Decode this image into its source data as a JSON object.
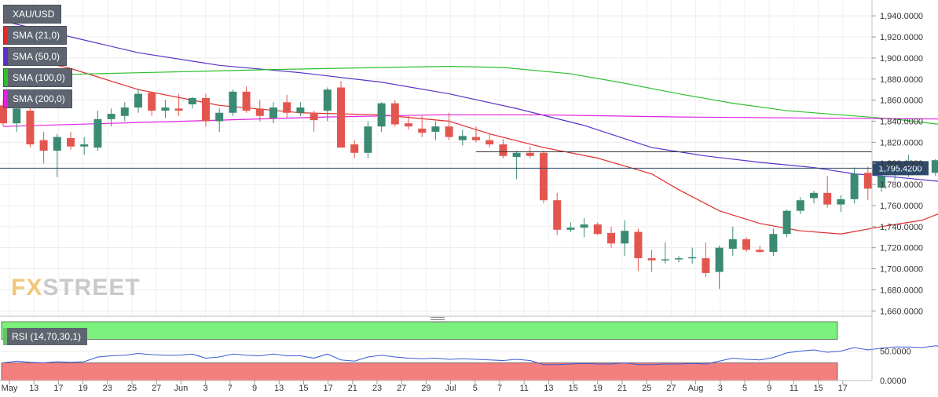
{
  "symbol": "XAU/USD",
  "watermark": {
    "prefix": "FX",
    "name": "STREET"
  },
  "indicators": [
    {
      "label": "SMA (21,0)",
      "color": "#e02b2b"
    },
    {
      "label": "SMA (50,0)",
      "color": "#5a32c8"
    },
    {
      "label": "SMA (100,0)",
      "color": "#2ec02e"
    },
    {
      "label": "SMA (200,0)",
      "color": "#e020e0"
    }
  ],
  "rsi_label": "RSI (14,70,30,1)",
  "colors": {
    "up": "#3b8a74",
    "down": "#e3564f",
    "price_tag": "#2f4a6a"
  },
  "chart_data": [
    {
      "type": "candlestick",
      "x_ticks": [
        "May",
        "13",
        "17",
        "19",
        "23",
        "25",
        "27",
        "Jun",
        "3",
        "7",
        "9",
        "13",
        "15",
        "17",
        "21",
        "23",
        "27",
        "29",
        "Jul",
        "5",
        "7",
        "11",
        "13",
        "15",
        "19",
        "21",
        "25",
        "27",
        "Aug",
        "3",
        "5",
        "9",
        "11",
        "15",
        "17"
      ],
      "y_ticks": [
        "1,660.0000",
        "1,680.0000",
        "1,700.0000",
        "1,720.0000",
        "1,740.0000",
        "1,760.0000",
        "1,780.0000",
        "1,800.0000",
        "1,820.0000",
        "1,840.0000",
        "1,860.0000",
        "1,880.0000",
        "1,900.0000",
        "1,920.0000",
        "1,940.0000"
      ],
      "ylim": [
        1655,
        1955
      ],
      "last_price": "1,795.4200",
      "resistance_level": 1811,
      "candles": [
        {
          "o": 1855,
          "h": 1860,
          "l": 1835,
          "c": 1838
        },
        {
          "o": 1838,
          "h": 1858,
          "l": 1830,
          "c": 1852
        },
        {
          "o": 1850,
          "h": 1855,
          "l": 1815,
          "c": 1818
        },
        {
          "o": 1822,
          "h": 1830,
          "l": 1800,
          "c": 1812
        },
        {
          "o": 1812,
          "h": 1828,
          "l": 1787,
          "c": 1825
        },
        {
          "o": 1824,
          "h": 1830,
          "l": 1813,
          "c": 1816
        },
        {
          "o": 1816,
          "h": 1825,
          "l": 1808,
          "c": 1818
        },
        {
          "o": 1815,
          "h": 1850,
          "l": 1812,
          "c": 1842
        },
        {
          "o": 1842,
          "h": 1852,
          "l": 1835,
          "c": 1847
        },
        {
          "o": 1845,
          "h": 1858,
          "l": 1840,
          "c": 1853
        },
        {
          "o": 1853,
          "h": 1870,
          "l": 1848,
          "c": 1866
        },
        {
          "o": 1867,
          "h": 1868,
          "l": 1845,
          "c": 1850
        },
        {
          "o": 1850,
          "h": 1860,
          "l": 1843,
          "c": 1853
        },
        {
          "o": 1852,
          "h": 1866,
          "l": 1845,
          "c": 1850
        },
        {
          "o": 1856,
          "h": 1863,
          "l": 1852,
          "c": 1862
        },
        {
          "o": 1862,
          "h": 1866,
          "l": 1835,
          "c": 1840
        },
        {
          "o": 1840,
          "h": 1852,
          "l": 1830,
          "c": 1848
        },
        {
          "o": 1848,
          "h": 1870,
          "l": 1845,
          "c": 1868
        },
        {
          "o": 1868,
          "h": 1873,
          "l": 1848,
          "c": 1850
        },
        {
          "o": 1852,
          "h": 1860,
          "l": 1840,
          "c": 1845
        },
        {
          "o": 1843,
          "h": 1858,
          "l": 1838,
          "c": 1853
        },
        {
          "o": 1858,
          "h": 1865,
          "l": 1843,
          "c": 1848
        },
        {
          "o": 1848,
          "h": 1858,
          "l": 1845,
          "c": 1853
        },
        {
          "o": 1847,
          "h": 1850,
          "l": 1830,
          "c": 1841
        },
        {
          "o": 1850,
          "h": 1872,
          "l": 1840,
          "c": 1870
        },
        {
          "o": 1872,
          "h": 1878,
          "l": 1815,
          "c": 1815
        },
        {
          "o": 1818,
          "h": 1822,
          "l": 1805,
          "c": 1810
        },
        {
          "o": 1810,
          "h": 1840,
          "l": 1805,
          "c": 1835
        },
        {
          "o": 1835,
          "h": 1858,
          "l": 1830,
          "c": 1857
        },
        {
          "o": 1857,
          "h": 1860,
          "l": 1835,
          "c": 1837
        },
        {
          "o": 1838,
          "h": 1845,
          "l": 1832,
          "c": 1835
        },
        {
          "o": 1833,
          "h": 1845,
          "l": 1825,
          "c": 1829
        },
        {
          "o": 1830,
          "h": 1840,
          "l": 1822,
          "c": 1835
        },
        {
          "o": 1835,
          "h": 1848,
          "l": 1822,
          "c": 1825
        },
        {
          "o": 1822,
          "h": 1832,
          "l": 1817,
          "c": 1826
        },
        {
          "o": 1825,
          "h": 1835,
          "l": 1820,
          "c": 1822
        },
        {
          "o": 1822,
          "h": 1828,
          "l": 1815,
          "c": 1818
        },
        {
          "o": 1818,
          "h": 1823,
          "l": 1805,
          "c": 1807
        },
        {
          "o": 1806,
          "h": 1812,
          "l": 1785,
          "c": 1810
        },
        {
          "o": 1810,
          "h": 1816,
          "l": 1805,
          "c": 1807
        },
        {
          "o": 1810,
          "h": 1812,
          "l": 1762,
          "c": 1765
        },
        {
          "o": 1765,
          "h": 1772,
          "l": 1732,
          "c": 1737
        },
        {
          "o": 1737,
          "h": 1744,
          "l": 1735,
          "c": 1739
        },
        {
          "o": 1739,
          "h": 1748,
          "l": 1730,
          "c": 1742
        },
        {
          "o": 1742,
          "h": 1744,
          "l": 1732,
          "c": 1733
        },
        {
          "o": 1734,
          "h": 1740,
          "l": 1720,
          "c": 1724
        },
        {
          "o": 1724,
          "h": 1746,
          "l": 1712,
          "c": 1736
        },
        {
          "o": 1735,
          "h": 1738,
          "l": 1698,
          "c": 1710
        },
        {
          "o": 1710,
          "h": 1718,
          "l": 1697,
          "c": 1708
        },
        {
          "o": 1708,
          "h": 1725,
          "l": 1705,
          "c": 1709
        },
        {
          "o": 1709,
          "h": 1712,
          "l": 1706,
          "c": 1710
        },
        {
          "o": 1710,
          "h": 1720,
          "l": 1705,
          "c": 1711
        },
        {
          "o": 1710,
          "h": 1725,
          "l": 1692,
          "c": 1696
        },
        {
          "o": 1697,
          "h": 1722,
          "l": 1681,
          "c": 1720
        },
        {
          "o": 1719,
          "h": 1740,
          "l": 1712,
          "c": 1728
        },
        {
          "o": 1728,
          "h": 1730,
          "l": 1716,
          "c": 1718
        },
        {
          "o": 1718,
          "h": 1722,
          "l": 1715,
          "c": 1716
        },
        {
          "o": 1716,
          "h": 1738,
          "l": 1712,
          "c": 1733
        },
        {
          "o": 1733,
          "h": 1756,
          "l": 1730,
          "c": 1755
        },
        {
          "o": 1755,
          "h": 1768,
          "l": 1752,
          "c": 1765
        },
        {
          "o": 1767,
          "h": 1774,
          "l": 1762,
          "c": 1772
        },
        {
          "o": 1772,
          "h": 1788,
          "l": 1758,
          "c": 1761
        },
        {
          "o": 1761,
          "h": 1770,
          "l": 1754,
          "c": 1766
        },
        {
          "o": 1766,
          "h": 1796,
          "l": 1762,
          "c": 1790
        },
        {
          "o": 1791,
          "h": 1797,
          "l": 1765,
          "c": 1776
        },
        {
          "o": 1777,
          "h": 1790,
          "l": 1773,
          "c": 1788
        },
        {
          "o": 1789,
          "h": 1798,
          "l": 1784,
          "c": 1794
        },
        {
          "o": 1793,
          "h": 1808,
          "l": 1787,
          "c": 1795
        },
        {
          "o": 1795,
          "h": 1800,
          "l": 1790,
          "c": 1792
        },
        {
          "o": 1791,
          "h": 1804,
          "l": 1788,
          "c": 1803
        },
        {
          "o": 1802,
          "h": 1803,
          "l": 1792,
          "c": 1795
        }
      ],
      "sma": [
        {
          "label": "SMA (21,0)",
          "color": "#e02b2b",
          "points": [
            [
              0,
              1905
            ],
            [
              5,
              1890
            ],
            [
              10,
              1870
            ],
            [
              16,
              1855
            ],
            [
              22,
              1848
            ],
            [
              28,
              1846
            ],
            [
              33,
              1840
            ],
            [
              36,
              1828
            ],
            [
              40,
              1815
            ],
            [
              44,
              1805
            ],
            [
              48,
              1790
            ],
            [
              50,
              1775
            ],
            [
              53,
              1755
            ],
            [
              56,
              1743
            ],
            [
              59,
              1736
            ],
            [
              62,
              1733
            ],
            [
              65,
              1740
            ],
            [
              68,
              1746
            ],
            [
              70,
              1756
            ]
          ]
        },
        {
          "label": "SMA (50,0)",
          "color": "#5a32c8",
          "points": [
            [
              0,
              1935
            ],
            [
              5,
              1920
            ],
            [
              10,
              1905
            ],
            [
              16,
              1893
            ],
            [
              22,
              1886
            ],
            [
              28,
              1877
            ],
            [
              33,
              1866
            ],
            [
              38,
              1852
            ],
            [
              43,
              1836
            ],
            [
              48,
              1815
            ],
            [
              52,
              1807
            ],
            [
              56,
              1801
            ],
            [
              60,
              1796
            ],
            [
              63,
              1790
            ],
            [
              66,
              1787
            ],
            [
              70,
              1782
            ]
          ]
        },
        {
          "label": "SMA (100,0)",
          "color": "#2ec02e",
          "points": [
            [
              0,
              1883
            ],
            [
              10,
              1886
            ],
            [
              20,
              1889
            ],
            [
              28,
              1891
            ],
            [
              33,
              1892
            ],
            [
              37,
              1891
            ],
            [
              42,
              1885
            ],
            [
              46,
              1876
            ],
            [
              50,
              1866
            ],
            [
              54,
              1857
            ],
            [
              58,
              1850
            ],
            [
              62,
              1846
            ],
            [
              66,
              1842
            ],
            [
              70,
              1836
            ]
          ]
        },
        {
          "label": "SMA (200,0)",
          "color": "#e020e0",
          "points": [
            [
              0,
              1835
            ],
            [
              8,
              1838
            ],
            [
              16,
              1841
            ],
            [
              24,
              1844
            ],
            [
              32,
              1846
            ],
            [
              40,
              1846
            ],
            [
              50,
              1844
            ],
            [
              60,
              1843
            ],
            [
              70,
              1842
            ]
          ]
        }
      ]
    },
    {
      "type": "line",
      "title": "RSI (14,70,30,1)",
      "ylim": [
        0,
        100
      ],
      "y_ticks": [
        "0.0000",
        "50.0000"
      ],
      "bands": {
        "upper": 70,
        "lower": 30
      },
      "values": [
        30,
        33,
        31,
        30,
        32,
        31,
        32,
        40,
        42,
        43,
        46,
        44,
        43,
        43,
        45,
        38,
        40,
        45,
        43,
        42,
        45,
        42,
        42,
        38,
        45,
        35,
        33,
        40,
        43,
        40,
        38,
        37,
        38,
        36,
        37,
        36,
        35,
        34,
        36,
        34,
        27,
        27,
        28,
        29,
        28,
        28,
        30,
        27,
        27,
        28,
        28,
        29,
        28,
        33,
        38,
        36,
        35,
        39,
        47,
        50,
        52,
        48,
        50,
        56,
        52,
        55,
        57,
        57,
        56,
        59,
        57
      ]
    }
  ]
}
